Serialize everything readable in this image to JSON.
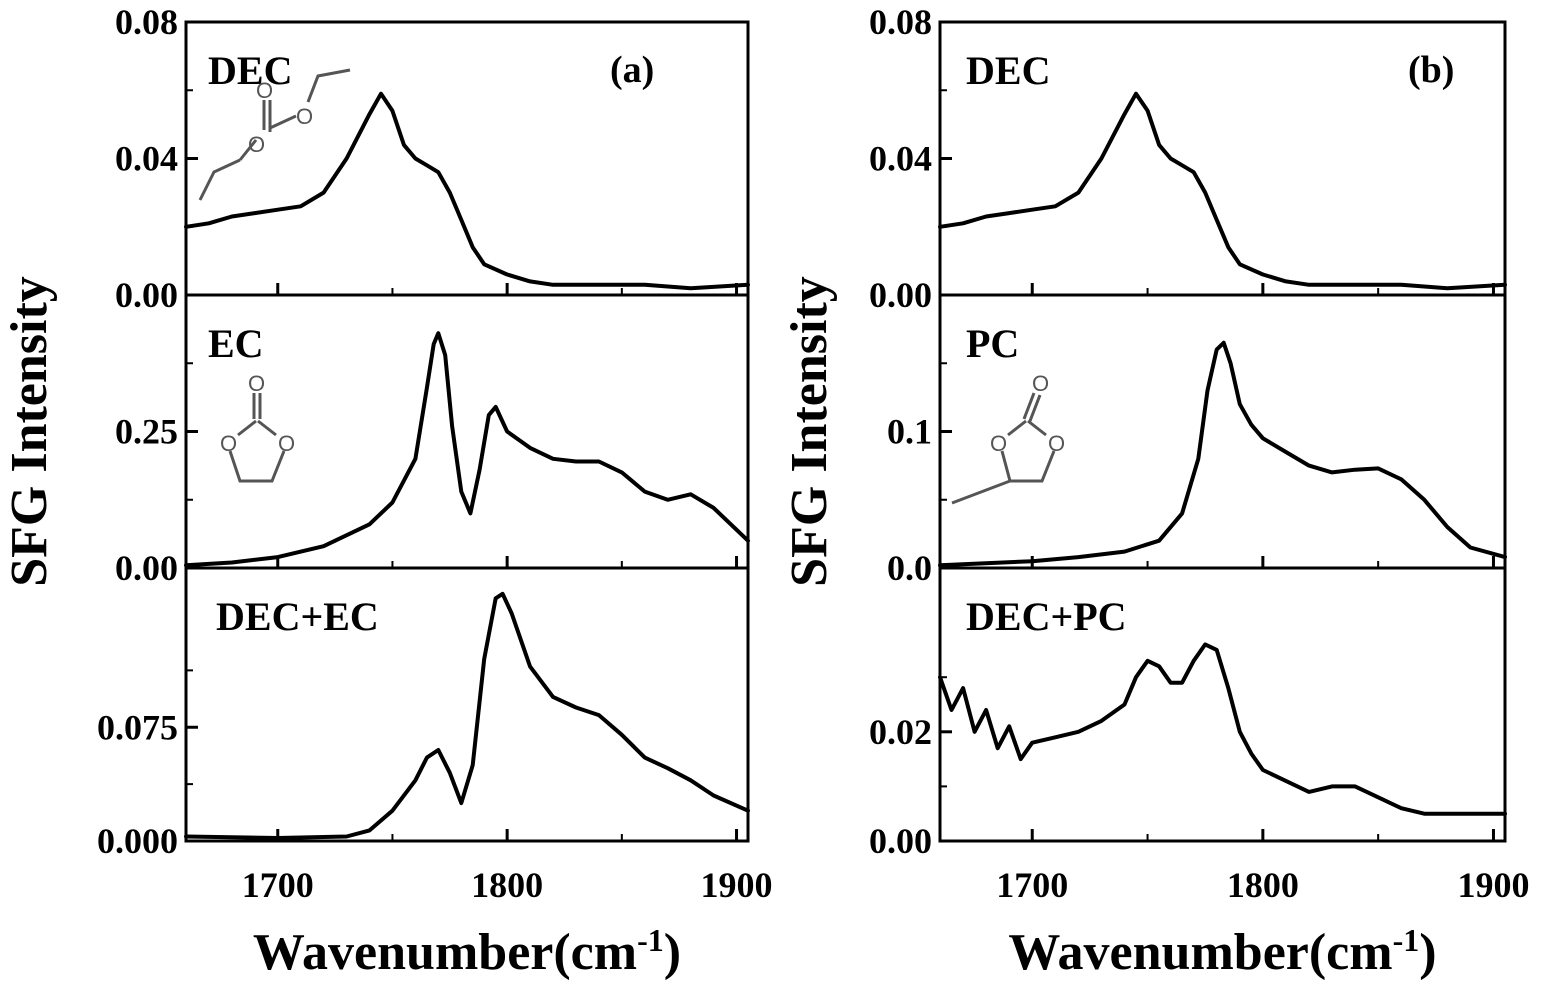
{
  "chart_data": [
    {
      "type": "line",
      "figure_label": "(a)",
      "ylabel": "SFG Intensity",
      "xlabel": "Wavenumber(cm",
      "xlabel_sup": "-1",
      "xlim": [
        1660,
        1905
      ],
      "xticks": [
        1700,
        1800,
        1900
      ],
      "xtick_labels": [
        "1700",
        "1800",
        "1900"
      ],
      "panels": [
        {
          "label": "DEC",
          "structure": "diethyl carbonate",
          "ylim": [
            0,
            0.08
          ],
          "yticks": [
            0,
            0.04,
            0.08
          ],
          "ytick_labels": [
            "0.00",
            "0.04",
            "0.08"
          ],
          "series": [
            {
              "x": [
                1660,
                1670,
                1680,
                1690,
                1700,
                1710,
                1720,
                1730,
                1740,
                1745,
                1750,
                1755,
                1760,
                1765,
                1770,
                1775,
                1780,
                1785,
                1790,
                1800,
                1810,
                1820,
                1840,
                1860,
                1880,
                1905
              ],
              "y": [
                0.02,
                0.021,
                0.023,
                0.024,
                0.025,
                0.026,
                0.03,
                0.04,
                0.053,
                0.059,
                0.054,
                0.044,
                0.04,
                0.038,
                0.036,
                0.03,
                0.022,
                0.014,
                0.009,
                0.006,
                0.004,
                0.003,
                0.003,
                0.003,
                0.002,
                0.003
              ]
            }
          ]
        },
        {
          "label": "EC",
          "structure": "ethylene carbonate",
          "ylim": [
            0,
            0.5
          ],
          "yticks": [
            0,
            0.25
          ],
          "ytick_labels": [
            "0.00",
            "0.25"
          ],
          "series": [
            {
              "x": [
                1660,
                1680,
                1700,
                1720,
                1740,
                1750,
                1760,
                1765,
                1768,
                1770,
                1773,
                1776,
                1780,
                1784,
                1788,
                1792,
                1795,
                1800,
                1810,
                1820,
                1830,
                1840,
                1850,
                1860,
                1870,
                1880,
                1890,
                1905
              ],
              "y": [
                0.005,
                0.01,
                0.02,
                0.04,
                0.08,
                0.12,
                0.2,
                0.33,
                0.41,
                0.43,
                0.39,
                0.26,
                0.14,
                0.1,
                0.18,
                0.28,
                0.295,
                0.25,
                0.22,
                0.2,
                0.195,
                0.195,
                0.175,
                0.14,
                0.125,
                0.135,
                0.11,
                0.05
              ]
            }
          ]
        },
        {
          "label": "DEC+EC",
          "ylim": [
            0,
            0.18
          ],
          "yticks": [
            0,
            0.075
          ],
          "ytick_labels": [
            "0.000",
            "0.075"
          ],
          "series": [
            {
              "x": [
                1660,
                1700,
                1730,
                1740,
                1750,
                1760,
                1765,
                1770,
                1775,
                1780,
                1785,
                1790,
                1795,
                1798,
                1802,
                1810,
                1820,
                1830,
                1840,
                1850,
                1860,
                1870,
                1880,
                1890,
                1905
              ],
              "y": [
                0.003,
                0.002,
                0.003,
                0.007,
                0.02,
                0.04,
                0.055,
                0.06,
                0.045,
                0.025,
                0.05,
                0.12,
                0.16,
                0.163,
                0.15,
                0.115,
                0.095,
                0.088,
                0.083,
                0.07,
                0.055,
                0.048,
                0.04,
                0.03,
                0.02
              ]
            }
          ]
        }
      ]
    },
    {
      "type": "line",
      "figure_label": "(b)",
      "ylabel": "SFG Intensity",
      "xlabel": "Wavenumber(cm",
      "xlabel_sup": "-1",
      "xlim": [
        1660,
        1905
      ],
      "xticks": [
        1700,
        1800,
        1900
      ],
      "xtick_labels": [
        "1700",
        "1800",
        "1900"
      ],
      "panels": [
        {
          "label": "DEC",
          "ylim": [
            0,
            0.08
          ],
          "yticks": [
            0,
            0.04,
            0.08
          ],
          "ytick_labels": [
            "0.00",
            "0.04",
            "0.08"
          ],
          "series": [
            {
              "x": [
                1660,
                1670,
                1680,
                1690,
                1700,
                1710,
                1720,
                1730,
                1740,
                1745,
                1750,
                1755,
                1760,
                1765,
                1770,
                1775,
                1780,
                1785,
                1790,
                1800,
                1810,
                1820,
                1840,
                1860,
                1880,
                1905
              ],
              "y": [
                0.02,
                0.021,
                0.023,
                0.024,
                0.025,
                0.026,
                0.03,
                0.04,
                0.053,
                0.059,
                0.054,
                0.044,
                0.04,
                0.038,
                0.036,
                0.03,
                0.022,
                0.014,
                0.009,
                0.006,
                0.004,
                0.003,
                0.003,
                0.003,
                0.002,
                0.003
              ]
            }
          ]
        },
        {
          "label": "PC",
          "structure": "propylene carbonate",
          "ylim": [
            0,
            0.2
          ],
          "yticks": [
            0,
            0.1
          ],
          "ytick_labels": [
            "0.0",
            "0.1"
          ],
          "series": [
            {
              "x": [
                1660,
                1700,
                1720,
                1740,
                1755,
                1765,
                1772,
                1776,
                1780,
                1783,
                1786,
                1790,
                1795,
                1800,
                1810,
                1820,
                1830,
                1840,
                1850,
                1860,
                1870,
                1880,
                1890,
                1905
              ],
              "y": [
                0.002,
                0.005,
                0.008,
                0.012,
                0.02,
                0.04,
                0.08,
                0.13,
                0.16,
                0.165,
                0.15,
                0.12,
                0.105,
                0.095,
                0.085,
                0.075,
                0.07,
                0.072,
                0.073,
                0.065,
                0.05,
                0.03,
                0.015,
                0.008
              ]
            }
          ]
        },
        {
          "label": "DEC+PC",
          "ylim": [
            0,
            0.05
          ],
          "yticks": [
            0,
            0.02
          ],
          "ytick_labels": [
            "0.00",
            "0.02"
          ],
          "series": [
            {
              "x": [
                1660,
                1665,
                1670,
                1675,
                1680,
                1685,
                1690,
                1695,
                1700,
                1710,
                1720,
                1730,
                1740,
                1745,
                1750,
                1755,
                1760,
                1765,
                1770,
                1775,
                1780,
                1785,
                1790,
                1795,
                1800,
                1810,
                1820,
                1830,
                1840,
                1850,
                1860,
                1870,
                1880,
                1890,
                1905
              ],
              "y": [
                0.03,
                0.024,
                0.028,
                0.02,
                0.024,
                0.017,
                0.021,
                0.015,
                0.018,
                0.019,
                0.02,
                0.022,
                0.025,
                0.03,
                0.033,
                0.032,
                0.029,
                0.029,
                0.033,
                0.036,
                0.035,
                0.028,
                0.02,
                0.016,
                0.013,
                0.011,
                0.009,
                0.01,
                0.01,
                0.008,
                0.006,
                0.005,
                0.005,
                0.005,
                0.005
              ]
            }
          ]
        }
      ]
    }
  ]
}
